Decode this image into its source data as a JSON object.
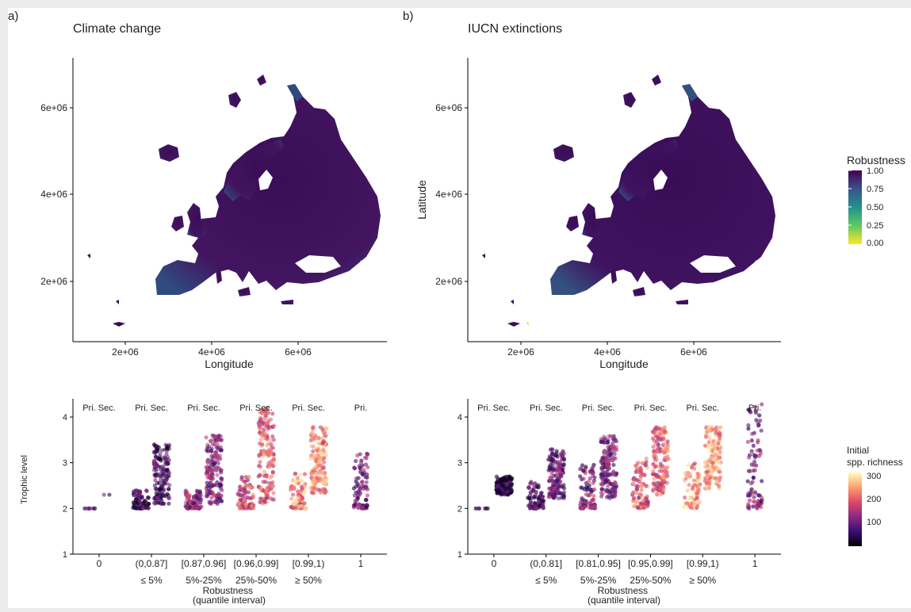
{
  "figure": {
    "panel_a_label": "a)",
    "panel_b_label": "b)"
  },
  "chart_data": [
    {
      "id": "map-a",
      "type": "heatmap",
      "title": "Climate change",
      "xlabel": "Longitude",
      "ylabel": "",
      "xticks": [
        "2e+06",
        "4e+06",
        "6e+06"
      ],
      "yticks": [
        "2e+06",
        "4e+06",
        "6e+06"
      ],
      "xlim": [
        800000,
        7900000
      ],
      "ylim": [
        700000,
        7200000
      ],
      "fill_variable": "Robustness",
      "dominant_value": 0.97,
      "coastal_low_value": 0.7
    },
    {
      "id": "map-b",
      "type": "heatmap",
      "title": "IUCN extinctions",
      "xlabel": "Longitude",
      "ylabel": "Latitude",
      "xticks": [
        "2e+06",
        "4e+06",
        "6e+06"
      ],
      "yticks": [
        "2e+06",
        "4e+06",
        "6e+06"
      ],
      "xlim": [
        800000,
        7900000
      ],
      "ylim": [
        700000,
        7200000
      ],
      "fill_variable": "Robustness",
      "dominant_value": 0.98,
      "coastal_low_value": 0.75
    },
    {
      "id": "trophic-a",
      "type": "scatter",
      "ylabel": "Trophic level",
      "xlabel": "Robustness\n(quantile interval)",
      "ylim": [
        1,
        4.4
      ],
      "yticks": [
        "1",
        "2",
        "3",
        "4"
      ],
      "categories": [
        {
          "interval": "0",
          "quantile": "",
          "header": "Pri.   Sec.",
          "pri": [
            2.0,
            2.0
          ],
          "sec": [
            2.3,
            2.3
          ],
          "richness": 90
        },
        {
          "interval": "(0,0.87]",
          "quantile": "≤ 5%",
          "header": "Pri.   Sec.",
          "pri": [
            2.0,
            2.4
          ],
          "sec": [
            2.1,
            3.4
          ],
          "richness": 70
        },
        {
          "interval": "[0.87,0.96]",
          "quantile": "5%-25%",
          "header": "Pri.   Sec.",
          "pri": [
            2.0,
            2.4
          ],
          "sec": [
            2.1,
            3.6
          ],
          "richness": 120
        },
        {
          "interval": "[0.96,0.99]",
          "quantile": "25%-50%",
          "header": "Pri.   Sec.",
          "pri": [
            2.0,
            2.7
          ],
          "sec": [
            2.1,
            4.2
          ],
          "richness": 190
        },
        {
          "interval": "[0.99,1)",
          "quantile": "≥ 50%",
          "header": "Pri.   Sec.",
          "pri": [
            2.0,
            2.8
          ],
          "sec": [
            2.3,
            3.8
          ],
          "richness": 235
        },
        {
          "interval": "1",
          "quantile": "",
          "header": "Pri.",
          "pri": [
            2.0,
            3.2
          ],
          "sec": null,
          "richness": 110
        }
      ]
    },
    {
      "id": "trophic-b",
      "type": "scatter",
      "ylabel": "",
      "xlabel": "Robustness\n(quantile interval)",
      "ylim": [
        1,
        4.4
      ],
      "yticks": [
        "1",
        "2",
        "3",
        "4"
      ],
      "categories": [
        {
          "interval": "0",
          "quantile": "",
          "header": "Pri.   Sec.",
          "pri": [
            2.0,
            2.0
          ],
          "sec": [
            2.3,
            2.7
          ],
          "richness": 30
        },
        {
          "interval": "(0,0.81]",
          "quantile": "≤ 5%",
          "header": "Pri.   Sec.",
          "pri": [
            2.0,
            2.6
          ],
          "sec": [
            2.2,
            3.3
          ],
          "richness": 90
        },
        {
          "interval": "[0.81,0.95]",
          "quantile": "5%-25%",
          "header": "Pri.   Sec.",
          "pri": [
            2.0,
            3.0
          ],
          "sec": [
            2.2,
            3.6
          ],
          "richness": 110
        },
        {
          "interval": "[0.95,0.99]",
          "quantile": "25%-50%",
          "header": "Pri.   Sec.",
          "pri": [
            2.0,
            3.1
          ],
          "sec": [
            2.3,
            3.8
          ],
          "richness": 200
        },
        {
          "interval": "[0.99,1)",
          "quantile": "≥ 50%",
          "header": "Pri.   Sec.",
          "pri": [
            2.0,
            3.0
          ],
          "sec": [
            2.4,
            3.8
          ],
          "richness": 250
        },
        {
          "interval": "1",
          "quantile": "",
          "header": "Pri.",
          "pri": [
            2.0,
            4.3
          ],
          "sec": null,
          "richness": 110
        }
      ]
    }
  ],
  "legends": {
    "robustness": {
      "title": "Robustness",
      "ticks": [
        "1.00",
        "0.75",
        "0.50",
        "0.25",
        "0.00"
      ],
      "colors": [
        "#fde725",
        "#5ec962",
        "#21918c",
        "#3b528b",
        "#440154"
      ]
    },
    "richness": {
      "title_line1": "Initial",
      "title_line2": "spp. richness",
      "ticks": [
        "300",
        "200",
        "100"
      ],
      "range": [
        0,
        320
      ],
      "colors": [
        "#000004",
        "#3b0f70",
        "#8c2981",
        "#de4968",
        "#fe9f6d",
        "#fcfdbf"
      ]
    }
  },
  "colors": {
    "map_dark": "#3d0e5a",
    "map_coast": "#2c5a83",
    "axis": "#000000"
  }
}
